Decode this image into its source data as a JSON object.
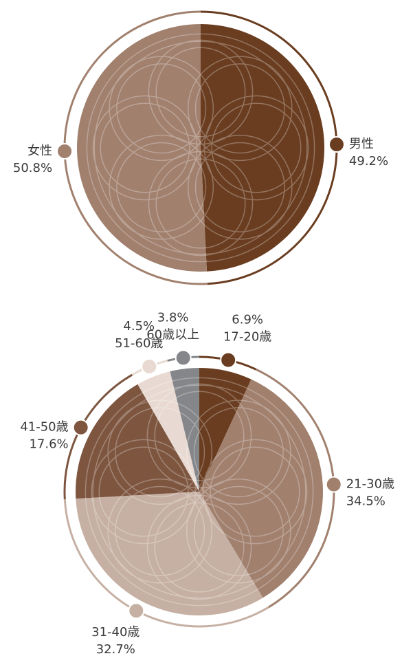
{
  "chart_data": [
    {
      "type": "pie",
      "categories": [
        "男性",
        "女性"
      ],
      "values": [
        49.2,
        50.8
      ],
      "value_labels": [
        "49.2%",
        "50.8%"
      ],
      "colors": [
        "#6a3d20",
        "#a1806e"
      ]
    },
    {
      "type": "pie",
      "categories": [
        "17-20歳",
        "21-30歳",
        "31-40歳",
        "41-50歳",
        "51-60歳",
        "60歳以上"
      ],
      "values": [
        6.9,
        34.5,
        32.7,
        17.6,
        4.5,
        3.8
      ],
      "value_labels": [
        "6.9%",
        "34.5%",
        "32.7%",
        "17.6%",
        "4.5%",
        "3.8%"
      ],
      "colors": [
        "#6a3d20",
        "#a1806e",
        "#c6b0a3",
        "#7e5640",
        "#e8dad2",
        "#858689"
      ]
    }
  ]
}
